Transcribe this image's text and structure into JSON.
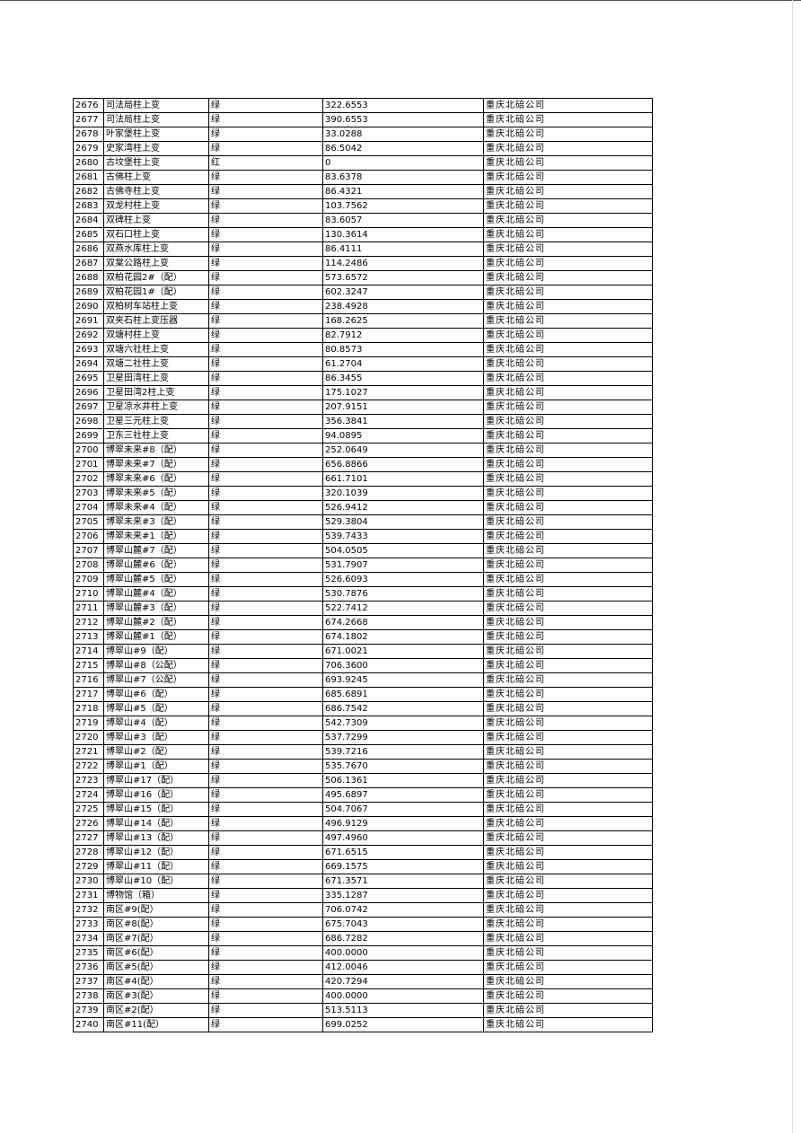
{
  "table": {
    "rows": [
      [
        "2676",
        "司法局柱上变",
        "绿",
        "322.6553",
        "重庆北碚公司"
      ],
      [
        "2677",
        "司法局柱上变",
        "绿",
        "390.6553",
        "重庆北碚公司"
      ],
      [
        "2678",
        "叶家堡柱上变",
        "绿",
        "33.0288",
        "重庆北碚公司"
      ],
      [
        "2679",
        "史家湾柱上变",
        "绿",
        "86.5042",
        "重庆北碚公司"
      ],
      [
        "2680",
        "古坟堡柱上变",
        "红",
        "0",
        "重庆北碚公司"
      ],
      [
        "2681",
        "古佛柱上变",
        "绿",
        "83.6378",
        "重庆北碚公司"
      ],
      [
        "2682",
        "古佛寺柱上变",
        "绿",
        "86.4321",
        "重庆北碚公司"
      ],
      [
        "2683",
        "双龙村柱上变",
        "绿",
        "103.7562",
        "重庆北碚公司"
      ],
      [
        "2684",
        "双碑柱上变",
        "绿",
        "83.6057",
        "重庆北碚公司"
      ],
      [
        "2685",
        "双石口柱上变",
        "绿",
        "130.3614",
        "重庆北碚公司"
      ],
      [
        "2686",
        "双燕水库柱上变",
        "绿",
        "86.4111",
        "重庆北碚公司"
      ],
      [
        "2687",
        "双棠公路柱上变",
        "绿",
        "114.2486",
        "重庆北碚公司"
      ],
      [
        "2688",
        "双柏花园2#（配）",
        "绿",
        "573.6572",
        "重庆北碚公司"
      ],
      [
        "2689",
        "双柏花园1#（配）",
        "绿",
        "602.3247",
        "重庆北碚公司"
      ],
      [
        "2690",
        "双柏树车站柱上变",
        "绿",
        "238.4928",
        "重庆北碚公司"
      ],
      [
        "2691",
        "双夹石柱上变压器",
        "绿",
        "168.2625",
        "重庆北碚公司"
      ],
      [
        "2692",
        "双塘村柱上变",
        "绿",
        "82.7912",
        "重庆北碚公司"
      ],
      [
        "2693",
        "双塘六社柱上变",
        "绿",
        "80.8573",
        "重庆北碚公司"
      ],
      [
        "2694",
        "双塘二社柱上变",
        "绿",
        "61.2704",
        "重庆北碚公司"
      ],
      [
        "2695",
        "卫星田湾柱上变",
        "绿",
        "86.3455",
        "重庆北碚公司"
      ],
      [
        "2696",
        "卫星田湾2柱上变",
        "绿",
        "175.1027",
        "重庆北碚公司"
      ],
      [
        "2697",
        "卫星凉水井柱上变",
        "绿",
        "207.9151",
        "重庆北碚公司"
      ],
      [
        "2698",
        "卫星三元柱上变",
        "绿",
        "356.3841",
        "重庆北碚公司"
      ],
      [
        "2699",
        "卫东三社柱上变",
        "绿",
        "94.0895",
        "重庆北碚公司"
      ],
      [
        "2700",
        "博翠未来#8（配）",
        "绿",
        "252.0649",
        "重庆北碚公司"
      ],
      [
        "2701",
        "博翠未来#7（配）",
        "绿",
        "656.8866",
        "重庆北碚公司"
      ],
      [
        "2702",
        "博翠未来#6（配）",
        "绿",
        "661.7101",
        "重庆北碚公司"
      ],
      [
        "2703",
        "博翠未来#5（配）",
        "绿",
        "320.1039",
        "重庆北碚公司"
      ],
      [
        "2704",
        "博翠未来#4（配）",
        "绿",
        "526.9412",
        "重庆北碚公司"
      ],
      [
        "2705",
        "博翠未来#3（配）",
        "绿",
        "529.3804",
        "重庆北碚公司"
      ],
      [
        "2706",
        "博翠未来#1（配）",
        "绿",
        "539.7433",
        "重庆北碚公司"
      ],
      [
        "2707",
        "博翠山麓#7（配）",
        "绿",
        "504.0505",
        "重庆北碚公司"
      ],
      [
        "2708",
        "博翠山麓#6（配）",
        "绿",
        "531.7907",
        "重庆北碚公司"
      ],
      [
        "2709",
        "博翠山麓#5（配）",
        "绿",
        "526.6093",
        "重庆北碚公司"
      ],
      [
        "2710",
        "博翠山麓#4（配）",
        "绿",
        "530.7876",
        "重庆北碚公司"
      ],
      [
        "2711",
        "博翠山麓#3（配）",
        "绿",
        "522.7412",
        "重庆北碚公司"
      ],
      [
        "2712",
        "博翠山麓#2（配）",
        "绿",
        "674.2668",
        "重庆北碚公司"
      ],
      [
        "2713",
        "博翠山麓#1（配）",
        "绿",
        "674.1802",
        "重庆北碚公司"
      ],
      [
        "2714",
        "博翠山#9（配）",
        "绿",
        "671.0021",
        "重庆北碚公司"
      ],
      [
        "2715",
        "博翠山#8（公配）",
        "绿",
        "706.3600",
        "重庆北碚公司"
      ],
      [
        "2716",
        "博翠山#7（公配）",
        "绿",
        "693.9245",
        "重庆北碚公司"
      ],
      [
        "2717",
        "博翠山#6（配）",
        "绿",
        "685.6891",
        "重庆北碚公司"
      ],
      [
        "2718",
        "博翠山#5（配）",
        "绿",
        "686.7542",
        "重庆北碚公司"
      ],
      [
        "2719",
        "博翠山#4（配）",
        "绿",
        "542.7309",
        "重庆北碚公司"
      ],
      [
        "2720",
        "博翠山#3（配）",
        "绿",
        "537.7299",
        "重庆北碚公司"
      ],
      [
        "2721",
        "博翠山#2（配）",
        "绿",
        "539.7216",
        "重庆北碚公司"
      ],
      [
        "2722",
        "博翠山#1（配）",
        "绿",
        "535.7670",
        "重庆北碚公司"
      ],
      [
        "2723",
        "博翠山#17（配）",
        "绿",
        "506.1361",
        "重庆北碚公司"
      ],
      [
        "2724",
        "博翠山#16（配）",
        "绿",
        "495.6897",
        "重庆北碚公司"
      ],
      [
        "2725",
        "博翠山#15（配）",
        "绿",
        "504.7067",
        "重庆北碚公司"
      ],
      [
        "2726",
        "博翠山#14（配）",
        "绿",
        "496.9129",
        "重庆北碚公司"
      ],
      [
        "2727",
        "博翠山#13（配）",
        "绿",
        "497.4960",
        "重庆北碚公司"
      ],
      [
        "2728",
        "博翠山#12（配）",
        "绿",
        "671.6515",
        "重庆北碚公司"
      ],
      [
        "2729",
        "博翠山#11（配）",
        "绿",
        "669.1575",
        "重庆北碚公司"
      ],
      [
        "2730",
        "博翠山#10（配）",
        "绿",
        "671.3571",
        "重庆北碚公司"
      ],
      [
        "2731",
        "博物馆（箱）",
        "绿",
        "335.1287",
        "重庆北碚公司"
      ],
      [
        "2732",
        "南区#9(配）",
        "绿",
        "706.0742",
        "重庆北碚公司"
      ],
      [
        "2733",
        "南区#8(配）",
        "绿",
        "675.7043",
        "重庆北碚公司"
      ],
      [
        "2734",
        "南区#7(配）",
        "绿",
        "686.7282",
        "重庆北碚公司"
      ],
      [
        "2735",
        "南区#6(配）",
        "绿",
        "400.0000",
        "重庆北碚公司"
      ],
      [
        "2736",
        "南区#5(配）",
        "绿",
        "412.0046",
        "重庆北碚公司"
      ],
      [
        "2737",
        "南区#4(配）",
        "绿",
        "420.7294",
        "重庆北碚公司"
      ],
      [
        "2738",
        "南区#3(配）",
        "绿",
        "400.0000",
        "重庆北碚公司"
      ],
      [
        "2739",
        "南区#2(配）",
        "绿",
        "513.5113",
        "重庆北碚公司"
      ],
      [
        "2740",
        "南区#11(配）",
        "绿",
        "699.0252",
        "重庆北碚公司"
      ]
    ]
  }
}
